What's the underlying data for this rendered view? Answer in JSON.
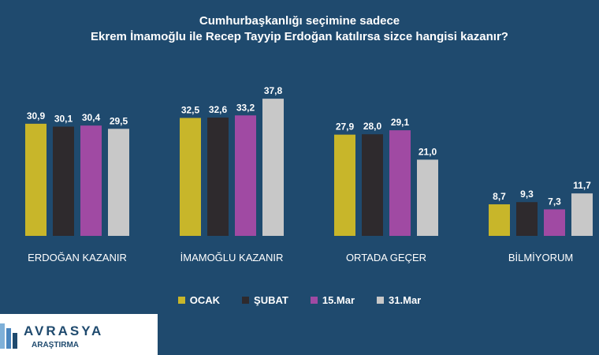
{
  "chart_data": {
    "type": "bar",
    "title_lines": [
      "Cumhurbaşkanlığı seçimine sadece",
      "Ekrem İmamoğlu ile Recep Tayyip Erdoğan katılırsa sizce hangisi kazanır?"
    ],
    "categories": [
      "ERDOĞAN KAZANIR",
      "İMAMOĞLU KAZANIR",
      "ORTADA GEÇER",
      "BİLMİYORUM"
    ],
    "series": [
      {
        "name": "OCAK",
        "color": "#c8b62a",
        "values": [
          30.9,
          32.5,
          27.9,
          8.7
        ],
        "labels": [
          "30,9",
          "32,5",
          "27,9",
          "8,7"
        ]
      },
      {
        "name": "ŞUBAT",
        "color": "#2e2a2d",
        "values": [
          30.1,
          32.6,
          28.0,
          9.3
        ],
        "labels": [
          "30,1",
          "32,6",
          "28,0",
          "9,3"
        ]
      },
      {
        "name": "15.Mar",
        "color": "#a04aa3",
        "values": [
          30.4,
          33.2,
          29.1,
          7.3
        ],
        "labels": [
          "30,4",
          "33,2",
          "29,1",
          "7,3"
        ]
      },
      {
        "name": "31.Mar",
        "color": "#c8c8c8",
        "values": [
          29.5,
          37.8,
          21.0,
          11.7
        ],
        "labels": [
          "29,5",
          "37,8",
          "21,0",
          "11,7"
        ]
      }
    ],
    "ylim": [
      0,
      40
    ],
    "grid": false,
    "legend_position": "bottom"
  },
  "logo": {
    "name": "AVRASYA",
    "sub": "ARAŞTIRMA"
  }
}
